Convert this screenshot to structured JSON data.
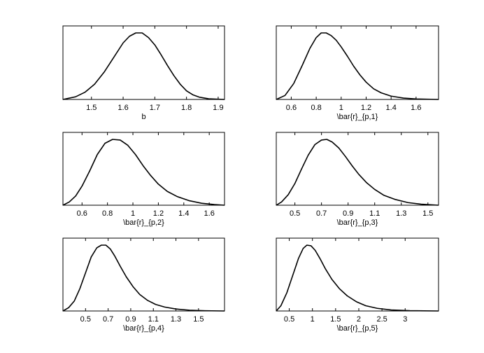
{
  "chart_data": [
    {
      "type": "line",
      "xlabel": "b",
      "xlim": [
        1.41,
        1.92
      ],
      "x_ticks": [
        1.5,
        1.6,
        1.7,
        1.8,
        1.9
      ],
      "x_tick_labels": [
        "1.5",
        "1.6",
        "1.7",
        "1.8",
        "1.9"
      ],
      "y_ticks_shown": false,
      "x": [
        1.41,
        1.45,
        1.48,
        1.51,
        1.54,
        1.57,
        1.6,
        1.62,
        1.64,
        1.66,
        1.68,
        1.7,
        1.72,
        1.74,
        1.76,
        1.78,
        1.8,
        1.82,
        1.84,
        1.87,
        1.92
      ],
      "values": [
        0.0,
        0.04,
        0.11,
        0.23,
        0.41,
        0.63,
        0.85,
        0.95,
        1.0,
        1.0,
        0.93,
        0.82,
        0.67,
        0.51,
        0.36,
        0.23,
        0.13,
        0.07,
        0.035,
        0.01,
        0.0
      ]
    },
    {
      "type": "line",
      "xlabel": "\\bar{r}_{p,1}",
      "xlim": [
        0.48,
        1.78
      ],
      "x_ticks": [
        0.6,
        0.8,
        1.0,
        1.2,
        1.4,
        1.6
      ],
      "x_tick_labels": [
        "0.6",
        "0.8",
        "1",
        "1.2",
        "1.4",
        "1.6"
      ],
      "y_ticks_shown": false,
      "x": [
        0.48,
        0.55,
        0.62,
        0.69,
        0.75,
        0.8,
        0.84,
        0.88,
        0.92,
        0.96,
        1.0,
        1.05,
        1.1,
        1.15,
        1.2,
        1.26,
        1.32,
        1.4,
        1.5,
        1.6,
        1.78
      ],
      "values": [
        0.0,
        0.06,
        0.24,
        0.52,
        0.77,
        0.93,
        1.0,
        1.0,
        0.96,
        0.89,
        0.79,
        0.65,
        0.5,
        0.37,
        0.26,
        0.16,
        0.1,
        0.05,
        0.02,
        0.008,
        0.0
      ]
    },
    {
      "type": "line",
      "xlabel": "\\bar{r}_{p,2}",
      "xlim": [
        0.45,
        1.72
      ],
      "x_ticks": [
        0.6,
        0.8,
        1.0,
        1.2,
        1.4,
        1.6
      ],
      "x_tick_labels": [
        "0.6",
        "0.8",
        "1",
        "1.2",
        "1.4",
        "1.6"
      ],
      "y_ticks_shown": false,
      "x": [
        0.45,
        0.5,
        0.55,
        0.6,
        0.66,
        0.72,
        0.78,
        0.84,
        0.9,
        0.96,
        1.02,
        1.08,
        1.14,
        1.2,
        1.27,
        1.35,
        1.44,
        1.54,
        1.64,
        1.72
      ],
      "values": [
        0.0,
        0.05,
        0.14,
        0.29,
        0.52,
        0.77,
        0.94,
        1.0,
        0.99,
        0.91,
        0.77,
        0.6,
        0.45,
        0.32,
        0.21,
        0.13,
        0.07,
        0.03,
        0.01,
        0.0
      ]
    },
    {
      "type": "line",
      "xlabel": "\\bar{r}_{p,3}",
      "xlim": [
        0.36,
        1.58
      ],
      "x_ticks": [
        0.5,
        0.7,
        0.9,
        1.1,
        1.3,
        1.5
      ],
      "x_tick_labels": [
        "0.5",
        "0.7",
        "0.9",
        "1.1",
        "1.3",
        "1.5"
      ],
      "y_ticks_shown": false,
      "x": [
        0.36,
        0.4,
        0.45,
        0.5,
        0.55,
        0.6,
        0.65,
        0.7,
        0.74,
        0.78,
        0.83,
        0.88,
        0.93,
        0.98,
        1.04,
        1.1,
        1.17,
        1.25,
        1.35,
        1.45,
        1.58
      ],
      "values": [
        0.0,
        0.05,
        0.16,
        0.33,
        0.55,
        0.76,
        0.92,
        0.99,
        1.0,
        0.96,
        0.87,
        0.74,
        0.6,
        0.47,
        0.34,
        0.24,
        0.15,
        0.09,
        0.04,
        0.015,
        0.0
      ]
    },
    {
      "type": "line",
      "xlabel": "\\bar{r}_{p,4}",
      "xlim": [
        0.3,
        1.73
      ],
      "x_ticks": [
        0.5,
        0.7,
        0.9,
        1.1,
        1.3,
        1.5
      ],
      "x_tick_labels": [
        "0.5",
        "0.7",
        "0.9",
        "1.1",
        "1.3",
        "1.5"
      ],
      "y_ticks_shown": false,
      "x": [
        0.3,
        0.35,
        0.4,
        0.45,
        0.5,
        0.55,
        0.6,
        0.64,
        0.68,
        0.72,
        0.76,
        0.81,
        0.86,
        0.92,
        0.98,
        1.05,
        1.12,
        1.2,
        1.3,
        1.42,
        1.56,
        1.73
      ],
      "values": [
        0.0,
        0.05,
        0.15,
        0.34,
        0.58,
        0.82,
        0.96,
        1.0,
        1.0,
        0.94,
        0.83,
        0.67,
        0.52,
        0.37,
        0.25,
        0.16,
        0.1,
        0.06,
        0.03,
        0.012,
        0.004,
        0.0
      ]
    },
    {
      "type": "line",
      "xlabel": "\\bar{r}_{p,5}",
      "xlim": [
        0.22,
        3.72
      ],
      "x_ticks": [
        0.5,
        1.0,
        1.5,
        2.0,
        2.5,
        3.0
      ],
      "x_tick_labels": [
        "0.5",
        "1",
        "1.5",
        "2",
        "2.5",
        "3"
      ],
      "y_ticks_shown": false,
      "x": [
        0.22,
        0.32,
        0.45,
        0.58,
        0.7,
        0.8,
        0.88,
        0.97,
        1.06,
        1.16,
        1.28,
        1.42,
        1.58,
        1.75,
        1.95,
        2.15,
        2.4,
        2.7,
        3.1,
        3.72
      ],
      "values": [
        0.0,
        0.08,
        0.28,
        0.55,
        0.8,
        0.95,
        1.0,
        0.99,
        0.92,
        0.8,
        0.64,
        0.48,
        0.34,
        0.23,
        0.14,
        0.08,
        0.04,
        0.015,
        0.005,
        0.0
      ]
    }
  ]
}
